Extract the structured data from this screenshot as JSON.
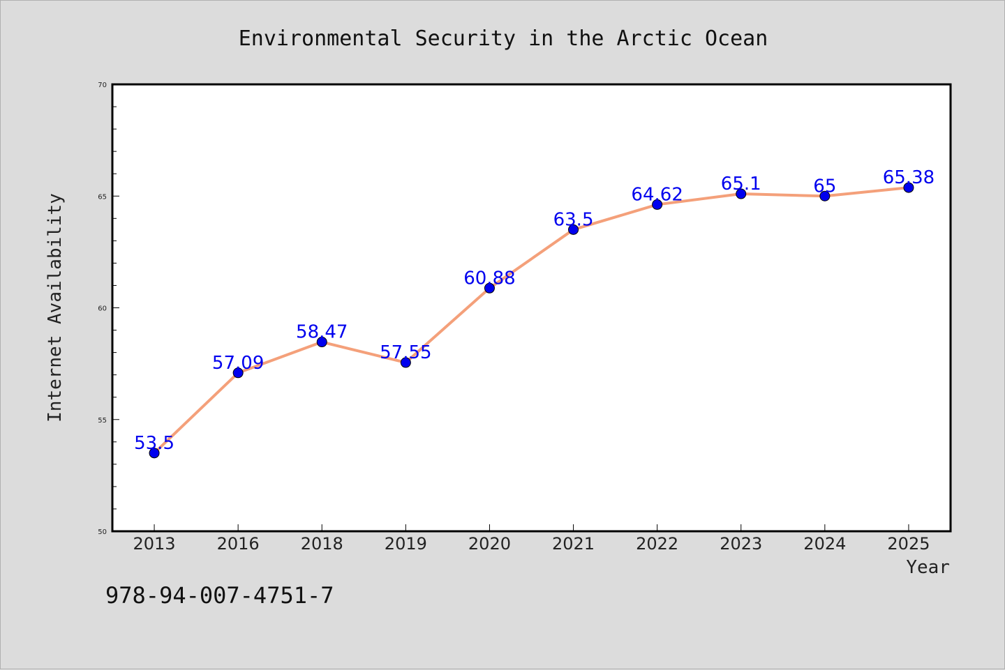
{
  "chart_data": {
    "type": "line",
    "title": "Environmental Security in the Arctic Ocean",
    "xlabel": "Year",
    "ylabel": "Internet Availability",
    "categories": [
      "2013",
      "2016",
      "2018",
      "2019",
      "2020",
      "2021",
      "2022",
      "2023",
      "2024",
      "2025"
    ],
    "series": [
      {
        "values": [
          53.5,
          57.09,
          58.47,
          57.55,
          60.88,
          63.5,
          64.62,
          65.1,
          65,
          65.38
        ],
        "data_labels": [
          "53.5",
          "57.09",
          "58.47",
          "57.55",
          "60.88",
          "63.5",
          "64.62",
          "65.1",
          "65",
          "65.38"
        ]
      }
    ],
    "ylim": [
      50,
      70
    ],
    "yticks": [
      "50",
      "55",
      "60",
      "65",
      "70"
    ],
    "grid": false,
    "legend": "none",
    "colors": {
      "line": "#f4a07a",
      "marker": "#0000ee",
      "data_label": "#0000ee",
      "background": "#dcdcdc",
      "plot_background": "#ffffff"
    }
  },
  "footer_text": "978-94-007-4751-7"
}
